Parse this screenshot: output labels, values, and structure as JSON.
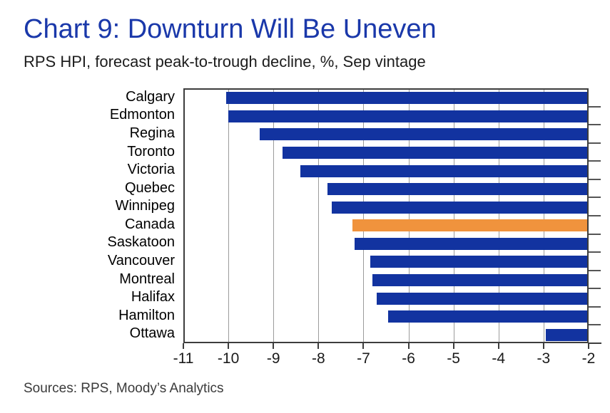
{
  "header": {
    "title": "Chart 9: Downturn Will Be Uneven",
    "subtitle": "RPS HPI, forecast peak-to-trough decline, %, Sep vintage"
  },
  "chart_data": {
    "type": "bar",
    "orientation": "horizontal",
    "title": "Chart 9: Downturn Will Be Uneven",
    "subtitle": "RPS HPI, forecast peak-to-trough decline, %, Sep vintage",
    "unit": "%",
    "categories": [
      "Calgary",
      "Edmonton",
      "Regina",
      "Toronto",
      "Victoria",
      "Quebec",
      "Winnipeg",
      "Canada",
      "Saskatoon",
      "Vancouver",
      "Montreal",
      "Halifax",
      "Hamilton",
      "Ottawa"
    ],
    "values": [
      -10.05,
      -10.0,
      -9.3,
      -8.8,
      -8.4,
      -7.8,
      -7.7,
      -7.25,
      -7.2,
      -6.85,
      -6.8,
      -6.7,
      -6.45,
      -2.95
    ],
    "bars_anchored_at": -2,
    "highlight_category": "Canada",
    "x_axis": {
      "min": -11,
      "max": -2,
      "ticks": [
        -11,
        -10,
        -9,
        -8,
        -7,
        -6,
        -5,
        -4,
        -3,
        -2
      ]
    },
    "grid": "vertical-gridlines-on",
    "legend": "none",
    "colors": {
      "bar": "#1233a0",
      "highlight": "#f0933d",
      "gridline": "#9c9c9c",
      "axis": "#3d3d3d",
      "title": "#1a38aa"
    }
  },
  "footer": {
    "sources": "Sources: RPS, Moody’s Analytics"
  }
}
